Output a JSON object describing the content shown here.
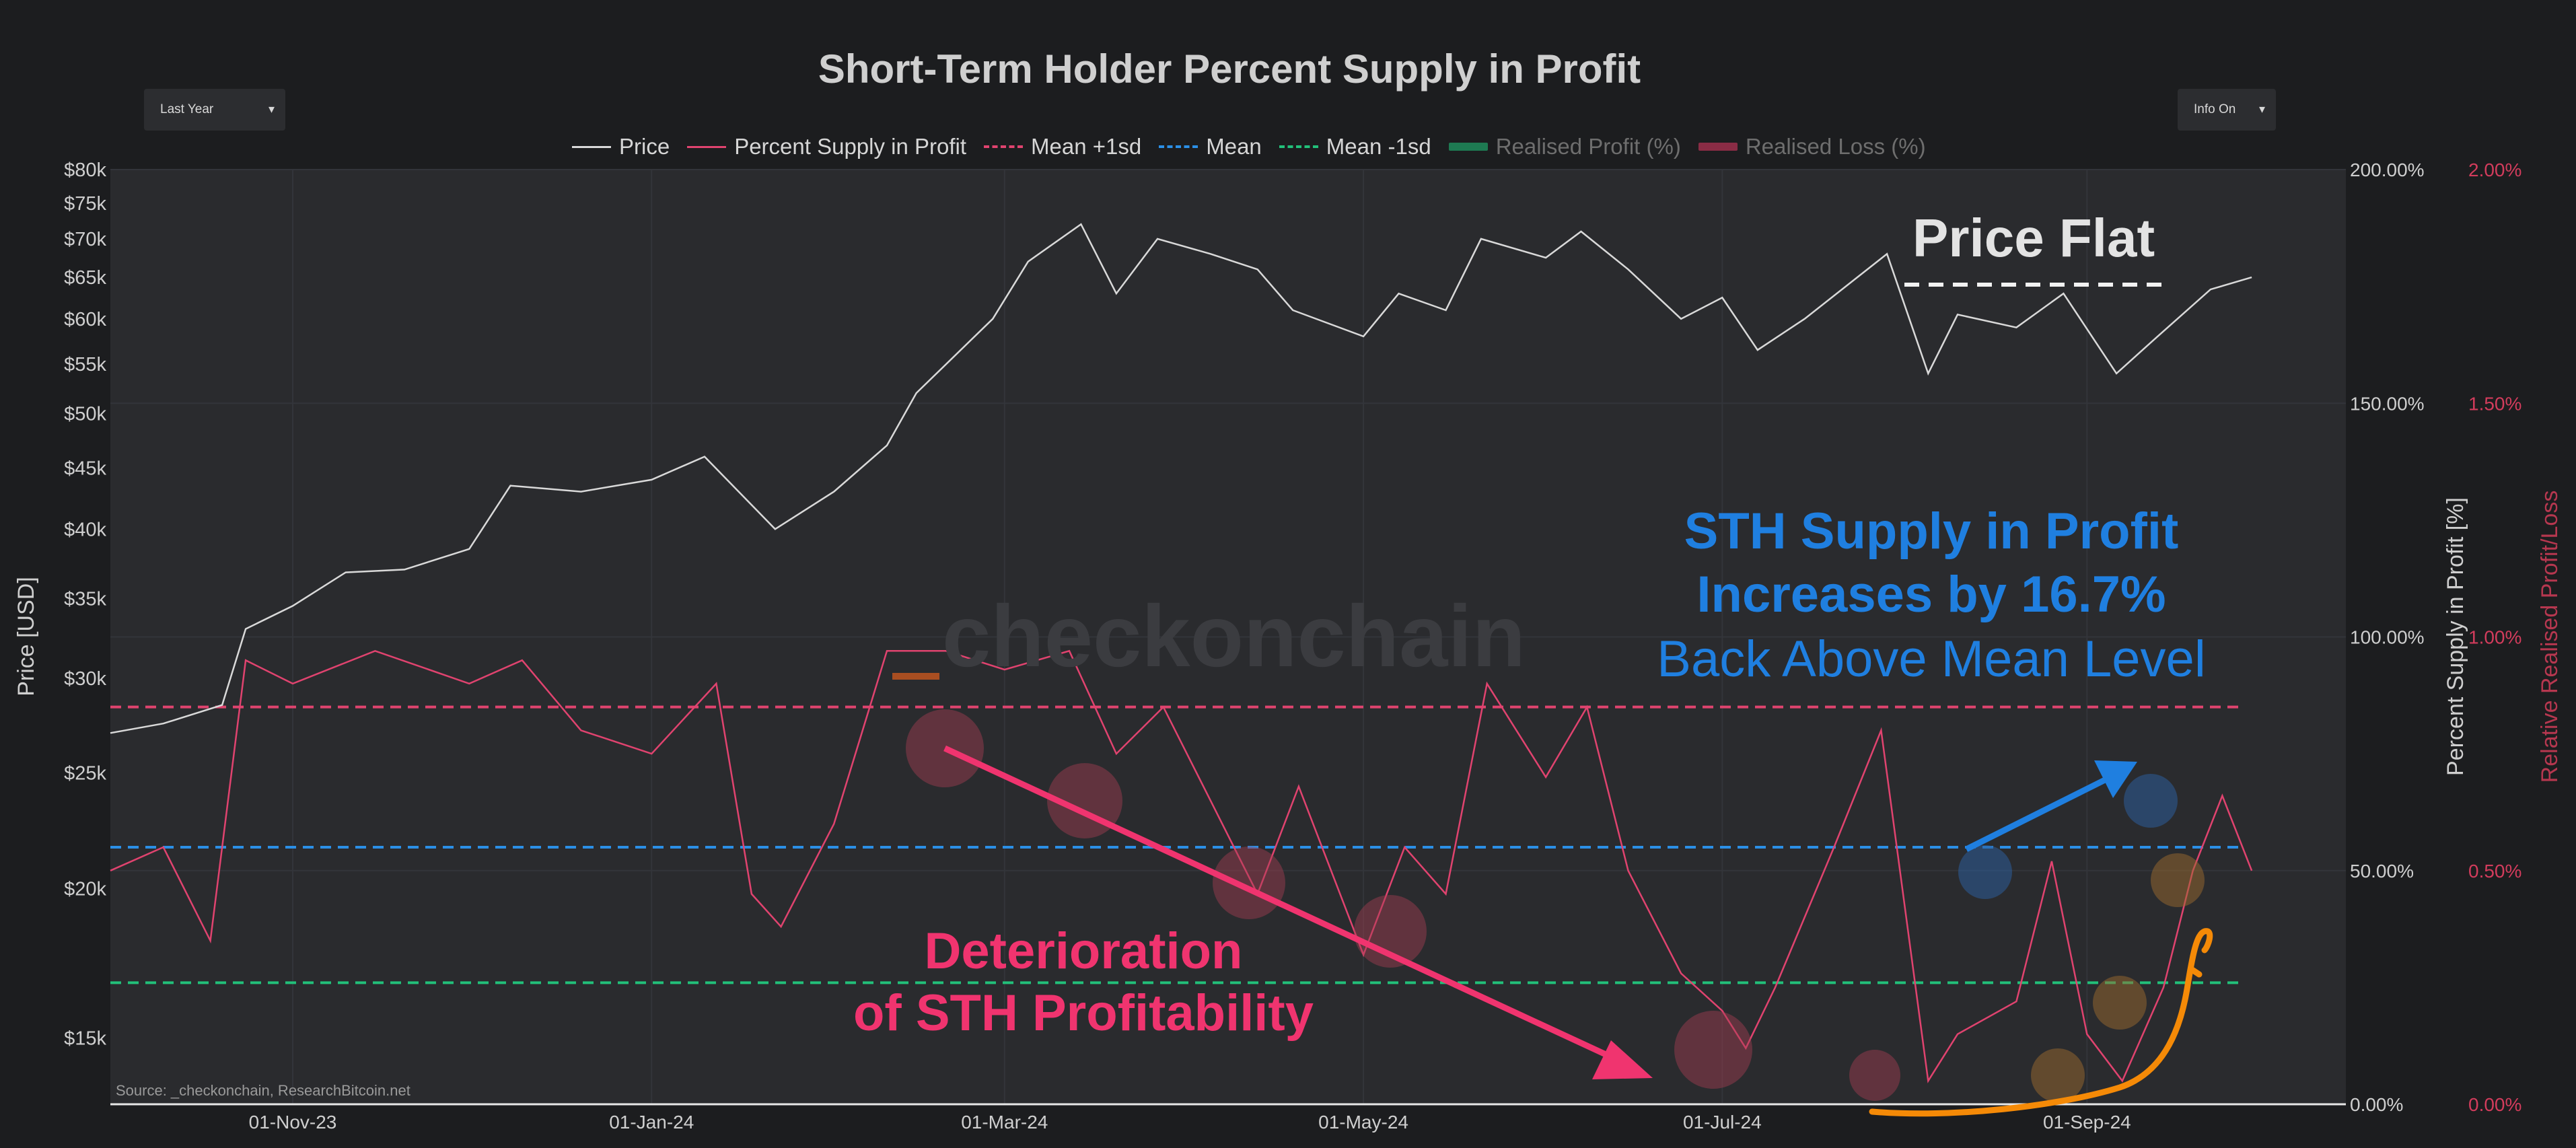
{
  "title": "Short-Term Holder Percent Supply in Profit",
  "controls": {
    "range_select": "Last Year",
    "info_select": "Info On"
  },
  "legend": [
    {
      "name": "Price",
      "style": "solid",
      "color": "#d9d9d9",
      "dim": false
    },
    {
      "name": "Percent Supply in Profit",
      "style": "solid",
      "color": "#e0436f",
      "dim": false
    },
    {
      "name": "Mean +1sd",
      "style": "dash",
      "color": "#e0436f",
      "dim": false
    },
    {
      "name": "Mean",
      "style": "dash",
      "color": "#2b8fe6",
      "dim": false
    },
    {
      "name": "Mean -1sd",
      "style": "dash",
      "color": "#22c07a",
      "dim": false
    },
    {
      "name": "Realised Profit (%)",
      "style": "bar",
      "color": "#1e7a52",
      "dim": true
    },
    {
      "name": "Realised Loss (%)",
      "style": "bar",
      "color": "#8a2c45",
      "dim": true
    }
  ],
  "annotations": {
    "price_flat": "Price Flat",
    "sth_line1": "STH Supply in Profit",
    "sth_line2": "Increases by 16.7%",
    "sth_line3": "Back Above Mean Level",
    "det_line1": "Deterioration",
    "det_line2": "of STH Profitability"
  },
  "watermark": "checkonchain",
  "source": "Source: _checkonchain, ResearchBitcoin.net",
  "colors": {
    "background": "#1c1d1f",
    "plot_bg": "#2a2b2e",
    "price": "#d9d9d9",
    "supply": "#e0436f",
    "mean_plus": "#e0436f",
    "mean": "#2b8fe6",
    "mean_minus": "#22c07a",
    "annot_blue": "#1f7fe0",
    "annot_pink": "#f0346f",
    "annot_orange": "#f58a07"
  },
  "chart_data": {
    "type": "line",
    "x_ticks": [
      "01-Nov-23",
      "01-Jan-24",
      "01-Mar-24",
      "01-May-24",
      "01-Jul-24",
      "01-Sep-24"
    ],
    "y_left": {
      "label": "Price [USD]",
      "scale": "log",
      "ticks": [
        "$15k",
        "$20k",
        "$25k",
        "$30k",
        "$35k",
        "$40k",
        "$45k",
        "$50k",
        "$55k",
        "$60k",
        "$65k",
        "$70k",
        "$75k",
        "$80k"
      ],
      "tick_values": [
        15000,
        20000,
        25000,
        30000,
        35000,
        40000,
        45000,
        50000,
        55000,
        60000,
        65000,
        70000,
        75000,
        80000
      ]
    },
    "y_right1": {
      "label": "Percent Supply in Profit [%]",
      "ticks": [
        "0.00%",
        "50.00%",
        "100.00%",
        "150.00%",
        "200.00%"
      ],
      "range": [
        0,
        200
      ]
    },
    "y_right2": {
      "label": "Relative Realised Profit/Loss",
      "ticks": [
        "0.00%",
        "0.50%",
        "1.00%",
        "1.50%",
        "2.00%"
      ],
      "range": [
        0,
        2
      ]
    },
    "reference_lines": {
      "mean_plus_1sd": 85,
      "mean": 55,
      "mean_minus_1sd": 26
    },
    "series": [
      {
        "name": "Price",
        "points": [
          [
            "2023-10-01",
            27000
          ],
          [
            "2023-10-10",
            27500
          ],
          [
            "2023-10-20",
            28500
          ],
          [
            "2023-10-24",
            33000
          ],
          [
            "2023-11-01",
            34500
          ],
          [
            "2023-11-10",
            36800
          ],
          [
            "2023-11-20",
            37000
          ],
          [
            "2023-12-01",
            38500
          ],
          [
            "2023-12-08",
            43500
          ],
          [
            "2023-12-20",
            43000
          ],
          [
            "2024-01-01",
            44000
          ],
          [
            "2024-01-10",
            46000
          ],
          [
            "2024-01-22",
            40000
          ],
          [
            "2024-02-01",
            43000
          ],
          [
            "2024-02-10",
            47000
          ],
          [
            "2024-02-15",
            52000
          ],
          [
            "2024-02-28",
            60000
          ],
          [
            "2024-03-05",
            67000
          ],
          [
            "2024-03-14",
            72000
          ],
          [
            "2024-03-20",
            63000
          ],
          [
            "2024-03-27",
            70000
          ],
          [
            "2024-04-05",
            68000
          ],
          [
            "2024-04-13",
            66000
          ],
          [
            "2024-04-19",
            61000
          ],
          [
            "2024-05-01",
            58000
          ],
          [
            "2024-05-07",
            63000
          ],
          [
            "2024-05-15",
            61000
          ],
          [
            "2024-05-21",
            70000
          ],
          [
            "2024-06-01",
            67500
          ],
          [
            "2024-06-07",
            71000
          ],
          [
            "2024-06-15",
            66000
          ],
          [
            "2024-06-24",
            60000
          ],
          [
            "2024-07-01",
            62500
          ],
          [
            "2024-07-07",
            56500
          ],
          [
            "2024-07-15",
            60000
          ],
          [
            "2024-07-29",
            68000
          ],
          [
            "2024-08-05",
            54000
          ],
          [
            "2024-08-10",
            60500
          ],
          [
            "2024-08-20",
            59000
          ],
          [
            "2024-08-28",
            63000
          ],
          [
            "2024-09-06",
            54000
          ],
          [
            "2024-09-13",
            58000
          ],
          [
            "2024-09-22",
            63500
          ],
          [
            "2024-09-29",
            65000
          ]
        ]
      },
      {
        "name": "Percent Supply in Profit",
        "points": [
          [
            "2023-10-01",
            50
          ],
          [
            "2023-10-10",
            55
          ],
          [
            "2023-10-18",
            35
          ],
          [
            "2023-10-24",
            95
          ],
          [
            "2023-11-01",
            90
          ],
          [
            "2023-11-15",
            97
          ],
          [
            "2023-12-01",
            90
          ],
          [
            "2023-12-10",
            95
          ],
          [
            "2023-12-20",
            80
          ],
          [
            "2024-01-01",
            75
          ],
          [
            "2024-01-12",
            90
          ],
          [
            "2024-01-18",
            45
          ],
          [
            "2024-01-23",
            38
          ],
          [
            "2024-02-01",
            60
          ],
          [
            "2024-02-10",
            97
          ],
          [
            "2024-02-20",
            97
          ],
          [
            "2024-03-01",
            93
          ],
          [
            "2024-03-12",
            97
          ],
          [
            "2024-03-20",
            75
          ],
          [
            "2024-03-28",
            85
          ],
          [
            "2024-04-05",
            65
          ],
          [
            "2024-04-13",
            45
          ],
          [
            "2024-04-20",
            68
          ],
          [
            "2024-05-01",
            32
          ],
          [
            "2024-05-08",
            55
          ],
          [
            "2024-05-15",
            45
          ],
          [
            "2024-05-22",
            90
          ],
          [
            "2024-06-01",
            70
          ],
          [
            "2024-06-08",
            85
          ],
          [
            "2024-06-15",
            50
          ],
          [
            "2024-06-24",
            28
          ],
          [
            "2024-07-01",
            20
          ],
          [
            "2024-07-05",
            12
          ],
          [
            "2024-07-10",
            25
          ],
          [
            "2024-07-20",
            55
          ],
          [
            "2024-07-28",
            80
          ],
          [
            "2024-08-05",
            5
          ],
          [
            "2024-08-10",
            15
          ],
          [
            "2024-08-20",
            22
          ],
          [
            "2024-08-26",
            52
          ],
          [
            "2024-09-01",
            15
          ],
          [
            "2024-09-07",
            5
          ],
          [
            "2024-09-14",
            25
          ],
          [
            "2024-09-19",
            50
          ],
          [
            "2024-09-24",
            66
          ],
          [
            "2024-09-29",
            50
          ]
        ]
      }
    ]
  }
}
